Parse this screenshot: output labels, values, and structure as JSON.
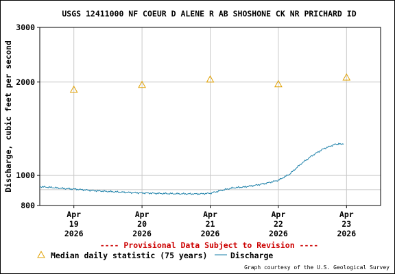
{
  "chart_data": {
    "type": "line",
    "title": "USGS 12411000 NF COEUR D ALENE R AB SHOSHONE CK NR PRICHARD ID",
    "ylabel": "Discharge, cubic feet per second",
    "xlabel": "",
    "y_scale": "log",
    "ylim": [
      800,
      3000
    ],
    "y_ticks": [
      {
        "value": 800,
        "label": "800"
      },
      {
        "value": 1000,
        "label": "1000"
      },
      {
        "value": 2000,
        "label": "2000"
      },
      {
        "value": 3000,
        "label": "3000"
      }
    ],
    "y_minor_gridlines": [
      900
    ],
    "xlim": [
      "2026-04-18T12:00",
      "2026-04-23T12:00"
    ],
    "x_ticks": [
      {
        "value": "2026-04-19T00:00",
        "month": "Apr",
        "day": "19",
        "year": "2026"
      },
      {
        "value": "2026-04-20T00:00",
        "month": "Apr",
        "day": "20",
        "year": "2026"
      },
      {
        "value": "2026-04-21T00:00",
        "month": "Apr",
        "day": "21",
        "year": "2026"
      },
      {
        "value": "2026-04-22T00:00",
        "month": "Apr",
        "day": "22",
        "year": "2026"
      },
      {
        "value": "2026-04-23T00:00",
        "month": "Apr",
        "day": "23",
        "year": "2026"
      }
    ],
    "grid": true,
    "series": [
      {
        "name": "Discharge",
        "kind": "line",
        "color": "#1a7fa8",
        "points": [
          [
            "2026-04-18T12:00",
            920
          ],
          [
            "2026-04-18T16:00",
            915
          ],
          [
            "2026-04-18T20:00",
            908
          ],
          [
            "2026-04-19T00:00",
            904
          ],
          [
            "2026-04-19T04:00",
            898
          ],
          [
            "2026-04-19T08:00",
            892
          ],
          [
            "2026-04-19T12:00",
            888
          ],
          [
            "2026-04-19T16:00",
            884
          ],
          [
            "2026-04-19T20:00",
            880
          ],
          [
            "2026-04-20T00:00",
            878
          ],
          [
            "2026-04-20T04:00",
            876
          ],
          [
            "2026-04-20T08:00",
            874
          ],
          [
            "2026-04-20T12:00",
            873
          ],
          [
            "2026-04-20T16:00",
            872
          ],
          [
            "2026-04-20T20:00",
            872
          ],
          [
            "2026-04-21T00:00",
            876
          ],
          [
            "2026-04-21T04:00",
            895
          ],
          [
            "2026-04-21T08:00",
            912
          ],
          [
            "2026-04-21T12:00",
            918
          ],
          [
            "2026-04-21T16:00",
            930
          ],
          [
            "2026-04-21T20:00",
            945
          ],
          [
            "2026-04-22T00:00",
            965
          ],
          [
            "2026-04-22T04:00",
            1010
          ],
          [
            "2026-04-22T08:00",
            1090
          ],
          [
            "2026-04-22T12:00",
            1160
          ],
          [
            "2026-04-22T16:00",
            1220
          ],
          [
            "2026-04-22T20:00",
            1260
          ],
          [
            "2026-04-22T23:00",
            1265
          ]
        ]
      },
      {
        "name": "Median daily statistic (75 years)",
        "kind": "marker",
        "marker": "triangle",
        "color": "#e0a000",
        "points": [
          [
            "2026-04-19T00:00",
            1890
          ],
          [
            "2026-04-20T00:00",
            1960
          ],
          [
            "2026-04-21T00:00",
            2040
          ],
          [
            "2026-04-22T00:00",
            1970
          ],
          [
            "2026-04-23T00:00",
            2070
          ]
        ]
      }
    ],
    "legend": {
      "placement": "bottom",
      "items": [
        {
          "label": "Median daily statistic (75 years)",
          "symbol": "triangle",
          "color": "#e0a000"
        },
        {
          "label": "Discharge",
          "symbol": "line",
          "color": "#1a7fa8"
        }
      ]
    },
    "notice": "---- Provisional Data Subject to Revision ----",
    "notice_color": "#cc0000",
    "credit": "Graph courtesy of the U.S. Geological Survey"
  }
}
